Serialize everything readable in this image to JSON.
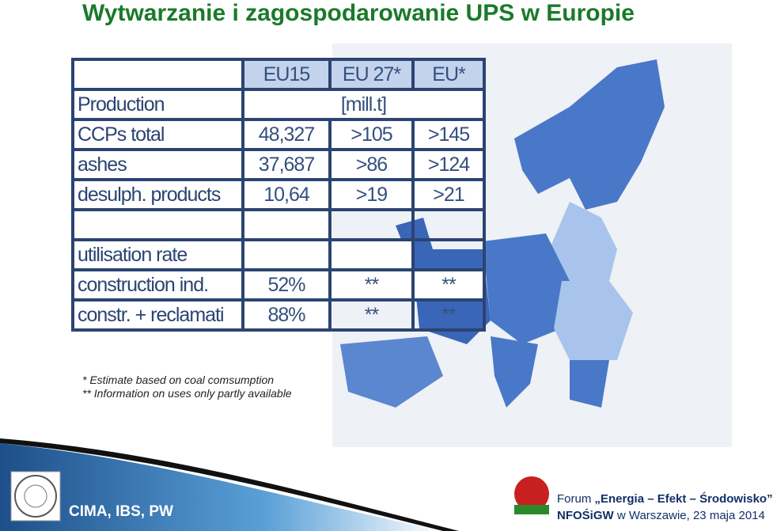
{
  "title": "Wytwarzanie i zagospodarowanie UPS w Europie",
  "table": {
    "header": [
      "EU15",
      "EU 27*",
      "EU*"
    ],
    "rows": [
      [
        "Production",
        "[mill.t]"
      ],
      [
        "CCPs total",
        "48,327",
        ">105",
        ">145"
      ],
      [
        "ashes",
        "37,687",
        ">86",
        ">124"
      ],
      [
        "desulph. products",
        "10,64",
        ">19",
        ">21"
      ],
      [
        "utilisation rate"
      ],
      [
        "construction ind.",
        "52%",
        "**",
        "**"
      ],
      [
        "constr. + reclamati",
        "88%",
        "**",
        "**"
      ]
    ]
  },
  "footnotes": [
    "*  Estimate based on coal comsumption",
    "** Information on uses only partly available"
  ],
  "footer": {
    "institutions": "CIMA, IBS, PW",
    "forum_label": "Forum",
    "forum_title": "„Energia – Efekt – Środowisko”",
    "organizer": "NFOŚiGW",
    "event": "w Warszawie, 23 maja 2014"
  }
}
